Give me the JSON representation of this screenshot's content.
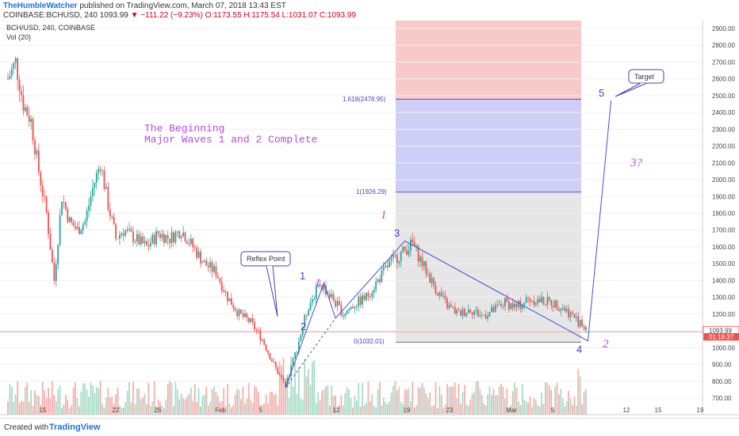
{
  "header": {
    "author": "TheHumbleWatcher",
    "published": "published on TradingView.com, March 07, 2018 13:43 EST",
    "symbol_line_prefix": "COINBASE:BCHUSD, 240  1093.99",
    "change": "▼ −111.22 (−9.23%)",
    "ohlc": "O:1173.55 H:1175.54 L:1031.07 C:1093.99"
  },
  "legend": {
    "symbol": "BCH/USD, 240, COINBASE",
    "volume": "Vol (20)"
  },
  "footer": {
    "created_with": "Created with",
    "brand": "TradingView"
  },
  "annotations": {
    "title_line1": "The Beginning",
    "title_line2": "Major Waves 1 and 2 Complete",
    "reflex_callout": "Reflex Point",
    "target_callout": "Target",
    "wave3_question": "3?",
    "fib_1618": "1.618(2478.95)",
    "fib_1": "1(1926.29)",
    "fib_0": "0(1032.01)",
    "wave_big_1": "1",
    "wave_big_2": "2",
    "wave_small_1": "1",
    "wave_small_2": "2",
    "wave_small_3": "3",
    "wave_small_4": "4",
    "wave_small_5": "5",
    "wave_italic_1": "1"
  },
  "colors": {
    "up": "#26a69a",
    "down": "#ef5350",
    "wave_line": "#3f51d4",
    "annotation": "#b44ce0",
    "fib_red_zone": "#f4b7b7",
    "fib_blue_zone": "#c9c9f5",
    "fib_gray_zone": "#e3e3e3"
  },
  "chart_data": {
    "type": "candlestick",
    "symbol": "BCH/USD",
    "interval": "240",
    "exchange": "COINBASE",
    "ylim": [
      650,
      2950
    ],
    "y_ticks": [
      "700.00",
      "800.00",
      "900.00",
      "1000.00",
      "1100.00",
      "1200.00",
      "1300.00",
      "1400.00",
      "1500.00",
      "1600.00",
      "1700.00",
      "1800.00",
      "1900.00",
      "2000.00",
      "2100.00",
      "2200.00",
      "2300.00",
      "2400.00",
      "2500.00",
      "2600.00",
      "2700.00",
      "2800.00",
      "2900.00"
    ],
    "x_ticks": [
      "15",
      "22",
      "26",
      "Feb",
      "5",
      "12",
      "19",
      "23",
      "Mar",
      "5",
      "12",
      "15",
      "19"
    ],
    "last_price": "1093.99",
    "countdown": "01:16:37",
    "price_path": [
      {
        "bar": 0,
        "price": 2600
      },
      {
        "bar": 4,
        "price": 2700
      },
      {
        "bar": 8,
        "price": 2450
      },
      {
        "bar": 12,
        "price": 2350
      },
      {
        "bar": 16,
        "price": 2050
      },
      {
        "bar": 20,
        "price": 1800
      },
      {
        "bar": 24,
        "price": 1400
      },
      {
        "bar": 28,
        "price": 1900
      },
      {
        "bar": 32,
        "price": 1750
      },
      {
        "bar": 36,
        "price": 1700
      },
      {
        "bar": 40,
        "price": 1750
      },
      {
        "bar": 44,
        "price": 1950
      },
      {
        "bar": 48,
        "price": 2100
      },
      {
        "bar": 52,
        "price": 1850
      },
      {
        "bar": 56,
        "price": 1650
      },
      {
        "bar": 60,
        "price": 1700
      },
      {
        "bar": 66,
        "price": 1650
      },
      {
        "bar": 72,
        "price": 1600
      },
      {
        "bar": 78,
        "price": 1680
      },
      {
        "bar": 84,
        "price": 1650
      },
      {
        "bar": 90,
        "price": 1700
      },
      {
        "bar": 96,
        "price": 1600
      },
      {
        "bar": 102,
        "price": 1500
      },
      {
        "bar": 108,
        "price": 1450
      },
      {
        "bar": 114,
        "price": 1300
      },
      {
        "bar": 120,
        "price": 1200
      },
      {
        "bar": 126,
        "price": 1150
      },
      {
        "bar": 132,
        "price": 1050
      },
      {
        "bar": 138,
        "price": 900
      },
      {
        "bar": 144,
        "price": 760
      },
      {
        "bar": 150,
        "price": 1000
      },
      {
        "bar": 156,
        "price": 1250
      },
      {
        "bar": 162,
        "price": 1380
      },
      {
        "bar": 168,
        "price": 1300
      },
      {
        "bar": 174,
        "price": 1200
      },
      {
        "bar": 180,
        "price": 1260
      },
      {
        "bar": 186,
        "price": 1300
      },
      {
        "bar": 192,
        "price": 1400
      },
      {
        "bar": 198,
        "price": 1500
      },
      {
        "bar": 204,
        "price": 1560
      },
      {
        "bar": 210,
        "price": 1620
      },
      {
        "bar": 216,
        "price": 1480
      },
      {
        "bar": 222,
        "price": 1350
      },
      {
        "bar": 228,
        "price": 1250
      },
      {
        "bar": 234,
        "price": 1200
      },
      {
        "bar": 240,
        "price": 1230
      },
      {
        "bar": 246,
        "price": 1190
      },
      {
        "bar": 252,
        "price": 1220
      },
      {
        "bar": 258,
        "price": 1270
      },
      {
        "bar": 264,
        "price": 1240
      },
      {
        "bar": 270,
        "price": 1290
      },
      {
        "bar": 276,
        "price": 1280
      },
      {
        "bar": 282,
        "price": 1270
      },
      {
        "bar": 288,
        "price": 1240
      },
      {
        "bar": 294,
        "price": 1180
      },
      {
        "bar": 300,
        "price": 1100
      }
    ],
    "wave_points": [
      {
        "label": "start",
        "bar": 144,
        "price": 760
      },
      {
        "label": "1",
        "bar": 164,
        "price": 1385
      },
      {
        "label": "2",
        "bar": 170,
        "price": 1175
      },
      {
        "label": "3",
        "bar": 206,
        "price": 1635
      },
      {
        "label": "4",
        "bar": 301,
        "price": 1040
      },
      {
        "label": "5",
        "bar": 313,
        "price": 2470
      }
    ],
    "fib_levels": [
      {
        "ratio": "1.618",
        "price": 2478.95
      },
      {
        "ratio": "1",
        "price": 1926.29
      },
      {
        "ratio": "0",
        "price": 1032.01
      }
    ]
  }
}
